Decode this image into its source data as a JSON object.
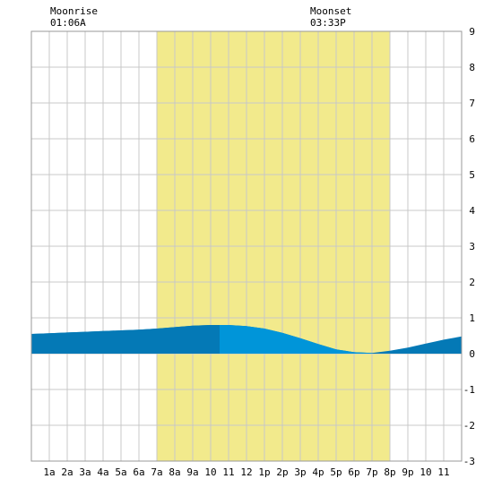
{
  "chart_data": {
    "type": "area",
    "annotations": [
      {
        "label": "Moonrise",
        "time": "01:06A",
        "hour": 1.1
      },
      {
        "label": "Moonset",
        "time": "03:33P",
        "hour": 15.55
      }
    ],
    "daylight": {
      "start_hour": 7.0,
      "end_hour": 20.0
    },
    "current_hour": 10.5,
    "x_tick_labels": [
      "1a",
      "2a",
      "3a",
      "4a",
      "5a",
      "6a",
      "7a",
      "8a",
      "9a",
      "10",
      "11",
      "12",
      "1p",
      "2p",
      "3p",
      "4p",
      "5p",
      "6p",
      "7p",
      "8p",
      "9p",
      "10",
      "11"
    ],
    "xlim": [
      0,
      24
    ],
    "ylim": [
      -3,
      9
    ],
    "y_ticks": [
      -3,
      -2,
      -1,
      0,
      1,
      2,
      3,
      4,
      5,
      6,
      7,
      8,
      9
    ],
    "grid": true,
    "series": [
      {
        "x": [
          0,
          1,
          2,
          3,
          4,
          5,
          6,
          7,
          8,
          9,
          10,
          11,
          12,
          13,
          14,
          15,
          16,
          17,
          18,
          19,
          20,
          21,
          22,
          23,
          24
        ],
        "values": [
          0.55,
          0.57,
          0.59,
          0.61,
          0.63,
          0.65,
          0.67,
          0.7,
          0.74,
          0.78,
          0.8,
          0.8,
          0.77,
          0.7,
          0.58,
          0.43,
          0.27,
          0.12,
          0.04,
          0.02,
          0.08,
          0.17,
          0.28,
          0.39,
          0.48
        ]
      }
    ],
    "colors": {
      "daylight": "#f2ea8c",
      "tide_past": "#0479b6",
      "tide_future": "#0095d9",
      "grid": "#c8c8c8",
      "frame": "#999999"
    }
  }
}
